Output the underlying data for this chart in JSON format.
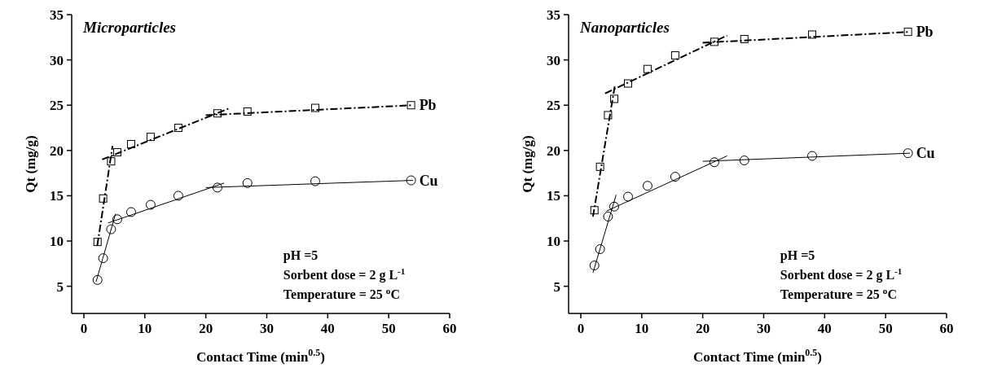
{
  "chart_data": [
    {
      "type": "scatter",
      "title": "Microparticles",
      "xlabel": "Contact Time (min$^{0.5}$)",
      "ylabel": "Qt (mg/g)",
      "xlim": [
        -2,
        60
      ],
      "ylim": [
        2,
        35
      ],
      "xticks": [
        0,
        10,
        20,
        30,
        40,
        50,
        60
      ],
      "yticks": [
        5,
        10,
        15,
        20,
        25,
        30,
        35
      ],
      "annotations": [
        "pH =5",
        "Sorbent dose = 2 g L$^{-1}$",
        "Temperature = 25 $^{o}$C"
      ],
      "x": [
        2.24,
        3.16,
        4.47,
        5.48,
        7.75,
        10.95,
        15.49,
        21.91,
        26.83,
        37.95,
        53.67
      ],
      "series": [
        {
          "name": "Pb",
          "marker": "square",
          "color": "#000000",
          "values": [
            9.9,
            14.7,
            18.8,
            19.8,
            20.7,
            21.5,
            22.5,
            24.1,
            24.3,
            24.7,
            25.0
          ]
        },
        {
          "name": "Cu",
          "marker": "circle",
          "color": "#000000",
          "values": [
            5.7,
            8.1,
            11.3,
            12.4,
            13.2,
            14.0,
            15.0,
            15.9,
            16.4,
            16.6,
            16.7
          ]
        },
        {
          "type": "line",
          "line_style": "dashed",
          "color": "#000000",
          "x": [
            2.2,
            4.7
          ],
          "values": [
            9.5,
            20.5
          ]
        },
        {
          "type": "line",
          "line_style": "dashed",
          "color": "#000000",
          "x": [
            3,
            24
          ],
          "values": [
            19,
            24.7
          ]
        },
        {
          "type": "line",
          "line_style": "dashed",
          "color": "#000000",
          "x": [
            20,
            54
          ],
          "values": [
            23.9,
            25
          ]
        },
        {
          "type": "line",
          "line_style": "solid",
          "color": "#000000",
          "x": [
            2,
            5.2
          ],
          "values": [
            5.5,
            13
          ]
        },
        {
          "type": "line",
          "line_style": "solid",
          "color": "#000000",
          "x": [
            4,
            23
          ],
          "values": [
            12,
            16.4
          ]
        },
        {
          "type": "line",
          "line_style": "solid",
          "color": "#000000",
          "x": [
            20,
            54
          ],
          "values": [
            15.9,
            16.7
          ]
        }
      ]
    },
    {
      "type": "scatter",
      "title": "Nanoparticles",
      "xlabel": "Contact Time (min$^{0.5}$)",
      "ylabel": "Qt (mg/g)",
      "xlim": [
        -2,
        60
      ],
      "ylim": [
        2,
        35
      ],
      "xticks": [
        0,
        10,
        20,
        30,
        40,
        50,
        60
      ],
      "yticks": [
        5,
        10,
        15,
        20,
        25,
        30,
        35
      ],
      "annotations": [
        "pH =5",
        "Sorbent dose = 2 g L$^{-1}$",
        "Temperature = 25 $^{o}$C"
      ],
      "x": [
        2.24,
        3.16,
        4.47,
        5.48,
        7.75,
        10.95,
        15.49,
        21.91,
        26.83,
        37.95,
        53.67
      ],
      "series": [
        {
          "name": "Pb",
          "marker": "square",
          "color": "#000000",
          "values": [
            13.4,
            18.2,
            23.9,
            25.7,
            27.4,
            29.0,
            30.5,
            32.0,
            32.3,
            32.8,
            33.1
          ]
        },
        {
          "name": "Cu",
          "marker": "circle",
          "color": "#000000",
          "values": [
            7.3,
            9.1,
            12.7,
            13.8,
            14.9,
            16.1,
            17.1,
            18.7,
            18.9,
            19.4,
            19.7
          ]
        },
        {
          "type": "line",
          "line_style": "dashed",
          "color": "#000000",
          "x": [
            2,
            5.6
          ],
          "values": [
            12.7,
            27.2
          ]
        },
        {
          "type": "line",
          "line_style": "dashed",
          "color": "#000000",
          "x": [
            4,
            24
          ],
          "values": [
            26.3,
            32.7
          ]
        },
        {
          "type": "line",
          "line_style": "dashed",
          "color": "#000000",
          "x": [
            20,
            54
          ],
          "values": [
            31.9,
            33.1
          ]
        },
        {
          "type": "line",
          "line_style": "solid",
          "color": "#000000",
          "x": [
            2,
            5.8
          ],
          "values": [
            6.5,
            15.1
          ]
        },
        {
          "type": "line",
          "line_style": "solid",
          "color": "#000000",
          "x": [
            4.2,
            24
          ],
          "values": [
            13.3,
            19.4
          ]
        },
        {
          "type": "line",
          "line_style": "solid",
          "color": "#000000",
          "x": [
            20,
            54
          ],
          "values": [
            18.8,
            19.7
          ]
        }
      ]
    }
  ]
}
